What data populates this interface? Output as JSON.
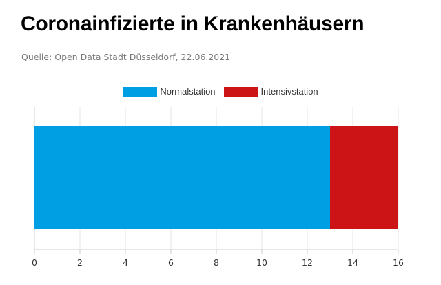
{
  "title": "Coronainfizierte in Krankenhäusern",
  "source": "Quelle: Open Data Stadt Düsseldorf, 22.06.2021",
  "legend": [
    {
      "label": "Normalstation",
      "color": "#009fe3"
    },
    {
      "label": "Intensivstation",
      "color": "#cc1417"
    }
  ],
  "chart_data": {
    "type": "bar",
    "orientation": "horizontal",
    "stacked": true,
    "categories": [
      ""
    ],
    "series": [
      {
        "name": "Normalstation",
        "values": [
          13
        ],
        "color": "#009fe3"
      },
      {
        "name": "Intensivstation",
        "values": [
          3
        ],
        "color": "#cc1417"
      }
    ],
    "xlim": [
      0,
      16
    ],
    "xticks": [
      0,
      2,
      4,
      6,
      8,
      10,
      12,
      14,
      16
    ],
    "grid": true,
    "legend_position": "top-center"
  }
}
